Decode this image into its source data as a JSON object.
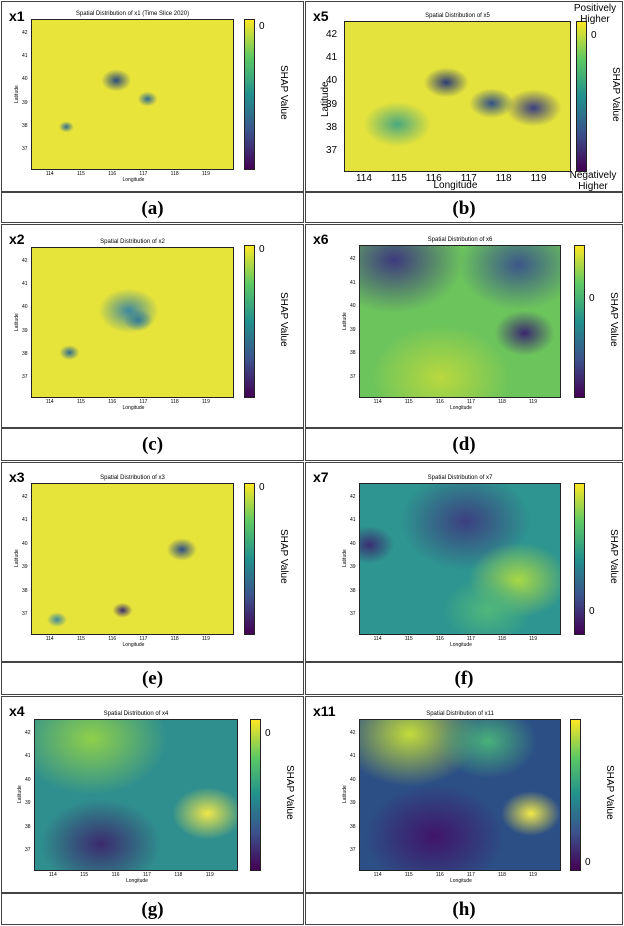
{
  "chart_data": [
    {
      "id": "x1",
      "type": "heatmap",
      "title": "Spatial Distribution of x1 (Time Slice 2020)",
      "xlabel": "Longitude",
      "ylabel": "Latitude",
      "colorbar_label": "SHAP Value",
      "colorbar_tick": "0",
      "x_ticks": [
        "114",
        "115",
        "116",
        "117",
        "118",
        "119"
      ],
      "y_ticks": [
        "37",
        "38",
        "39",
        "40",
        "41",
        "42"
      ],
      "caption": "(a)",
      "base": "#e9e43a",
      "hot": [
        {
          "lon": 116.1,
          "lat": 40.0,
          "r": 0.3,
          "c": "#2a4a7c"
        },
        {
          "lon": 117.1,
          "lat": 39.2,
          "r": 0.2,
          "c": "#2f6a8e"
        },
        {
          "lon": 114.5,
          "lat": 38.0,
          "r": 0.15,
          "c": "#2f6a8e"
        }
      ]
    },
    {
      "id": "x5",
      "type": "heatmap",
      "title": "Spatial Distribution of x5",
      "xlabel": "Longitude",
      "ylabel": "Latitude",
      "colorbar_label": "SHAP Value",
      "colorbar_tick": "0",
      "colorbar_top": "Positively Higher",
      "colorbar_bottom": "Negatively Higher",
      "x_ticks": [
        "114",
        "115",
        "116",
        "117",
        "118",
        "119"
      ],
      "y_ticks": [
        "37",
        "38",
        "39",
        "40",
        "41",
        "42"
      ],
      "caption": "(b)",
      "base": "#e4e23c",
      "hot": [
        {
          "lon": 116.3,
          "lat": 40.0,
          "r": 0.4,
          "c": "#2c3b74"
        },
        {
          "lon": 117.6,
          "lat": 39.1,
          "r": 0.4,
          "c": "#2f4f86"
        },
        {
          "lon": 114.9,
          "lat": 38.2,
          "r": 0.6,
          "c": "#4aa880"
        },
        {
          "lon": 118.8,
          "lat": 38.9,
          "r": 0.5,
          "c": "#3a3e80"
        }
      ]
    },
    {
      "id": "x2",
      "type": "heatmap",
      "title": "Spatial Distribution of x2",
      "xlabel": "Longitude",
      "ylabel": "Latitude",
      "colorbar_label": "SHAP Value",
      "colorbar_tick": "0",
      "x_ticks": [
        "114",
        "115",
        "116",
        "117",
        "118",
        "119"
      ],
      "y_ticks": [
        "37",
        "38",
        "39",
        "40",
        "41",
        "42"
      ],
      "caption": "(c)",
      "base": "#e6e33a",
      "hot": [
        {
          "lon": 116.5,
          "lat": 39.9,
          "r": 0.6,
          "c": "#3b86a0"
        },
        {
          "lon": 114.6,
          "lat": 38.1,
          "r": 0.2,
          "c": "#2f6a8e"
        },
        {
          "lon": 116.8,
          "lat": 39.5,
          "r": 0.3,
          "c": "#317a98"
        }
      ]
    },
    {
      "id": "x6",
      "type": "heatmap",
      "title": "Spatial Distribution of x6",
      "xlabel": "Longitude",
      "ylabel": "Latitude",
      "colorbar_label": "SHAP Value",
      "colorbar_tick": "0",
      "x_ticks": [
        "114",
        "115",
        "116",
        "117",
        "118",
        "119"
      ],
      "y_ticks": [
        "37",
        "38",
        "39",
        "40",
        "41",
        "42"
      ],
      "caption": "(d)",
      "base": "#6cc45c",
      "hot": [
        {
          "lon": 114.5,
          "lat": 42.0,
          "r": 1.4,
          "c": "#3d3a7e"
        },
        {
          "lon": 118.5,
          "lat": 41.8,
          "r": 1.2,
          "c": "#3b5689"
        },
        {
          "lon": 118.7,
          "lat": 38.9,
          "r": 0.6,
          "c": "#3b2770"
        },
        {
          "lon": 116.0,
          "lat": 37.0,
          "r": 1.4,
          "c": "#b9d83e"
        }
      ]
    },
    {
      "id": "x3",
      "type": "heatmap",
      "title": "Spatial Distribution of x3",
      "xlabel": "Longitude",
      "ylabel": "Latitude",
      "colorbar_label": "SHAP Value",
      "colorbar_tick": "0",
      "x_ticks": [
        "114",
        "115",
        "116",
        "117",
        "118",
        "119"
      ],
      "y_ticks": [
        "37",
        "38",
        "39",
        "40",
        "41",
        "42"
      ],
      "caption": "(e)",
      "base": "#e6e33a",
      "hot": [
        {
          "lon": 118.2,
          "lat": 39.8,
          "r": 0.3,
          "c": "#2c4b84"
        },
        {
          "lon": 116.3,
          "lat": 37.2,
          "r": 0.2,
          "c": "#3a2b6e"
        },
        {
          "lon": 114.2,
          "lat": 36.8,
          "r": 0.2,
          "c": "#3b86a0"
        }
      ]
    },
    {
      "id": "x7",
      "type": "heatmap",
      "title": "Spatial Distribution of x7",
      "xlabel": "Longitude",
      "ylabel": "Latitude",
      "colorbar_label": "SHAP Value",
      "colorbar_tick": "0",
      "x_ticks": [
        "114",
        "115",
        "116",
        "117",
        "118",
        "119"
      ],
      "y_ticks": [
        "37",
        "38",
        "39",
        "40",
        "41",
        "42"
      ],
      "caption": "(f)",
      "base": "#2e9590",
      "hot": [
        {
          "lon": 116.8,
          "lat": 41.0,
          "r": 1.3,
          "c": "#3c3f80"
        },
        {
          "lon": 113.7,
          "lat": 40.0,
          "r": 0.5,
          "c": "#3a2e72"
        },
        {
          "lon": 118.5,
          "lat": 38.5,
          "r": 1.0,
          "c": "#a8d845"
        },
        {
          "lon": 117.5,
          "lat": 37.2,
          "r": 0.9,
          "c": "#50b87a"
        }
      ]
    },
    {
      "id": "x4",
      "type": "heatmap",
      "title": "Spatial Distribution of x4",
      "xlabel": "Longitude",
      "ylabel": "Latitude",
      "colorbar_label": "SHAP Value",
      "colorbar_tick": "0",
      "x_ticks": [
        "114",
        "115",
        "116",
        "117",
        "118",
        "119"
      ],
      "y_ticks": [
        "37",
        "38",
        "39",
        "40",
        "41",
        "42"
      ],
      "caption": "(g)",
      "base": "#2f8f8e",
      "hot": [
        {
          "lon": 115.2,
          "lat": 41.8,
          "r": 1.5,
          "c": "#8fd04a"
        },
        {
          "lon": 115.5,
          "lat": 37.3,
          "r": 1.2,
          "c": "#3b2a6e"
        },
        {
          "lon": 118.9,
          "lat": 38.6,
          "r": 0.7,
          "c": "#efe64a"
        }
      ]
    },
    {
      "id": "x11",
      "type": "heatmap",
      "title": "Spatial Distribution of x11",
      "xlabel": "Longitude",
      "ylabel": "Latitude",
      "colorbar_label": "SHAP Value",
      "colorbar_tick": "0",
      "x_ticks": [
        "114",
        "115",
        "116",
        "117",
        "118",
        "119"
      ],
      "y_ticks": [
        "37",
        "38",
        "39",
        "40",
        "41",
        "42"
      ],
      "caption": "(h)",
      "base": "#2c4f86",
      "hot": [
        {
          "lon": 115.0,
          "lat": 42.0,
          "r": 1.4,
          "c": "#c3dc3a"
        },
        {
          "lon": 117.5,
          "lat": 41.7,
          "r": 1.0,
          "c": "#48b27a"
        },
        {
          "lon": 115.8,
          "lat": 37.6,
          "r": 1.4,
          "c": "#40146a"
        },
        {
          "lon": 118.9,
          "lat": 38.6,
          "r": 0.6,
          "c": "#f2e84a"
        }
      ]
    }
  ]
}
